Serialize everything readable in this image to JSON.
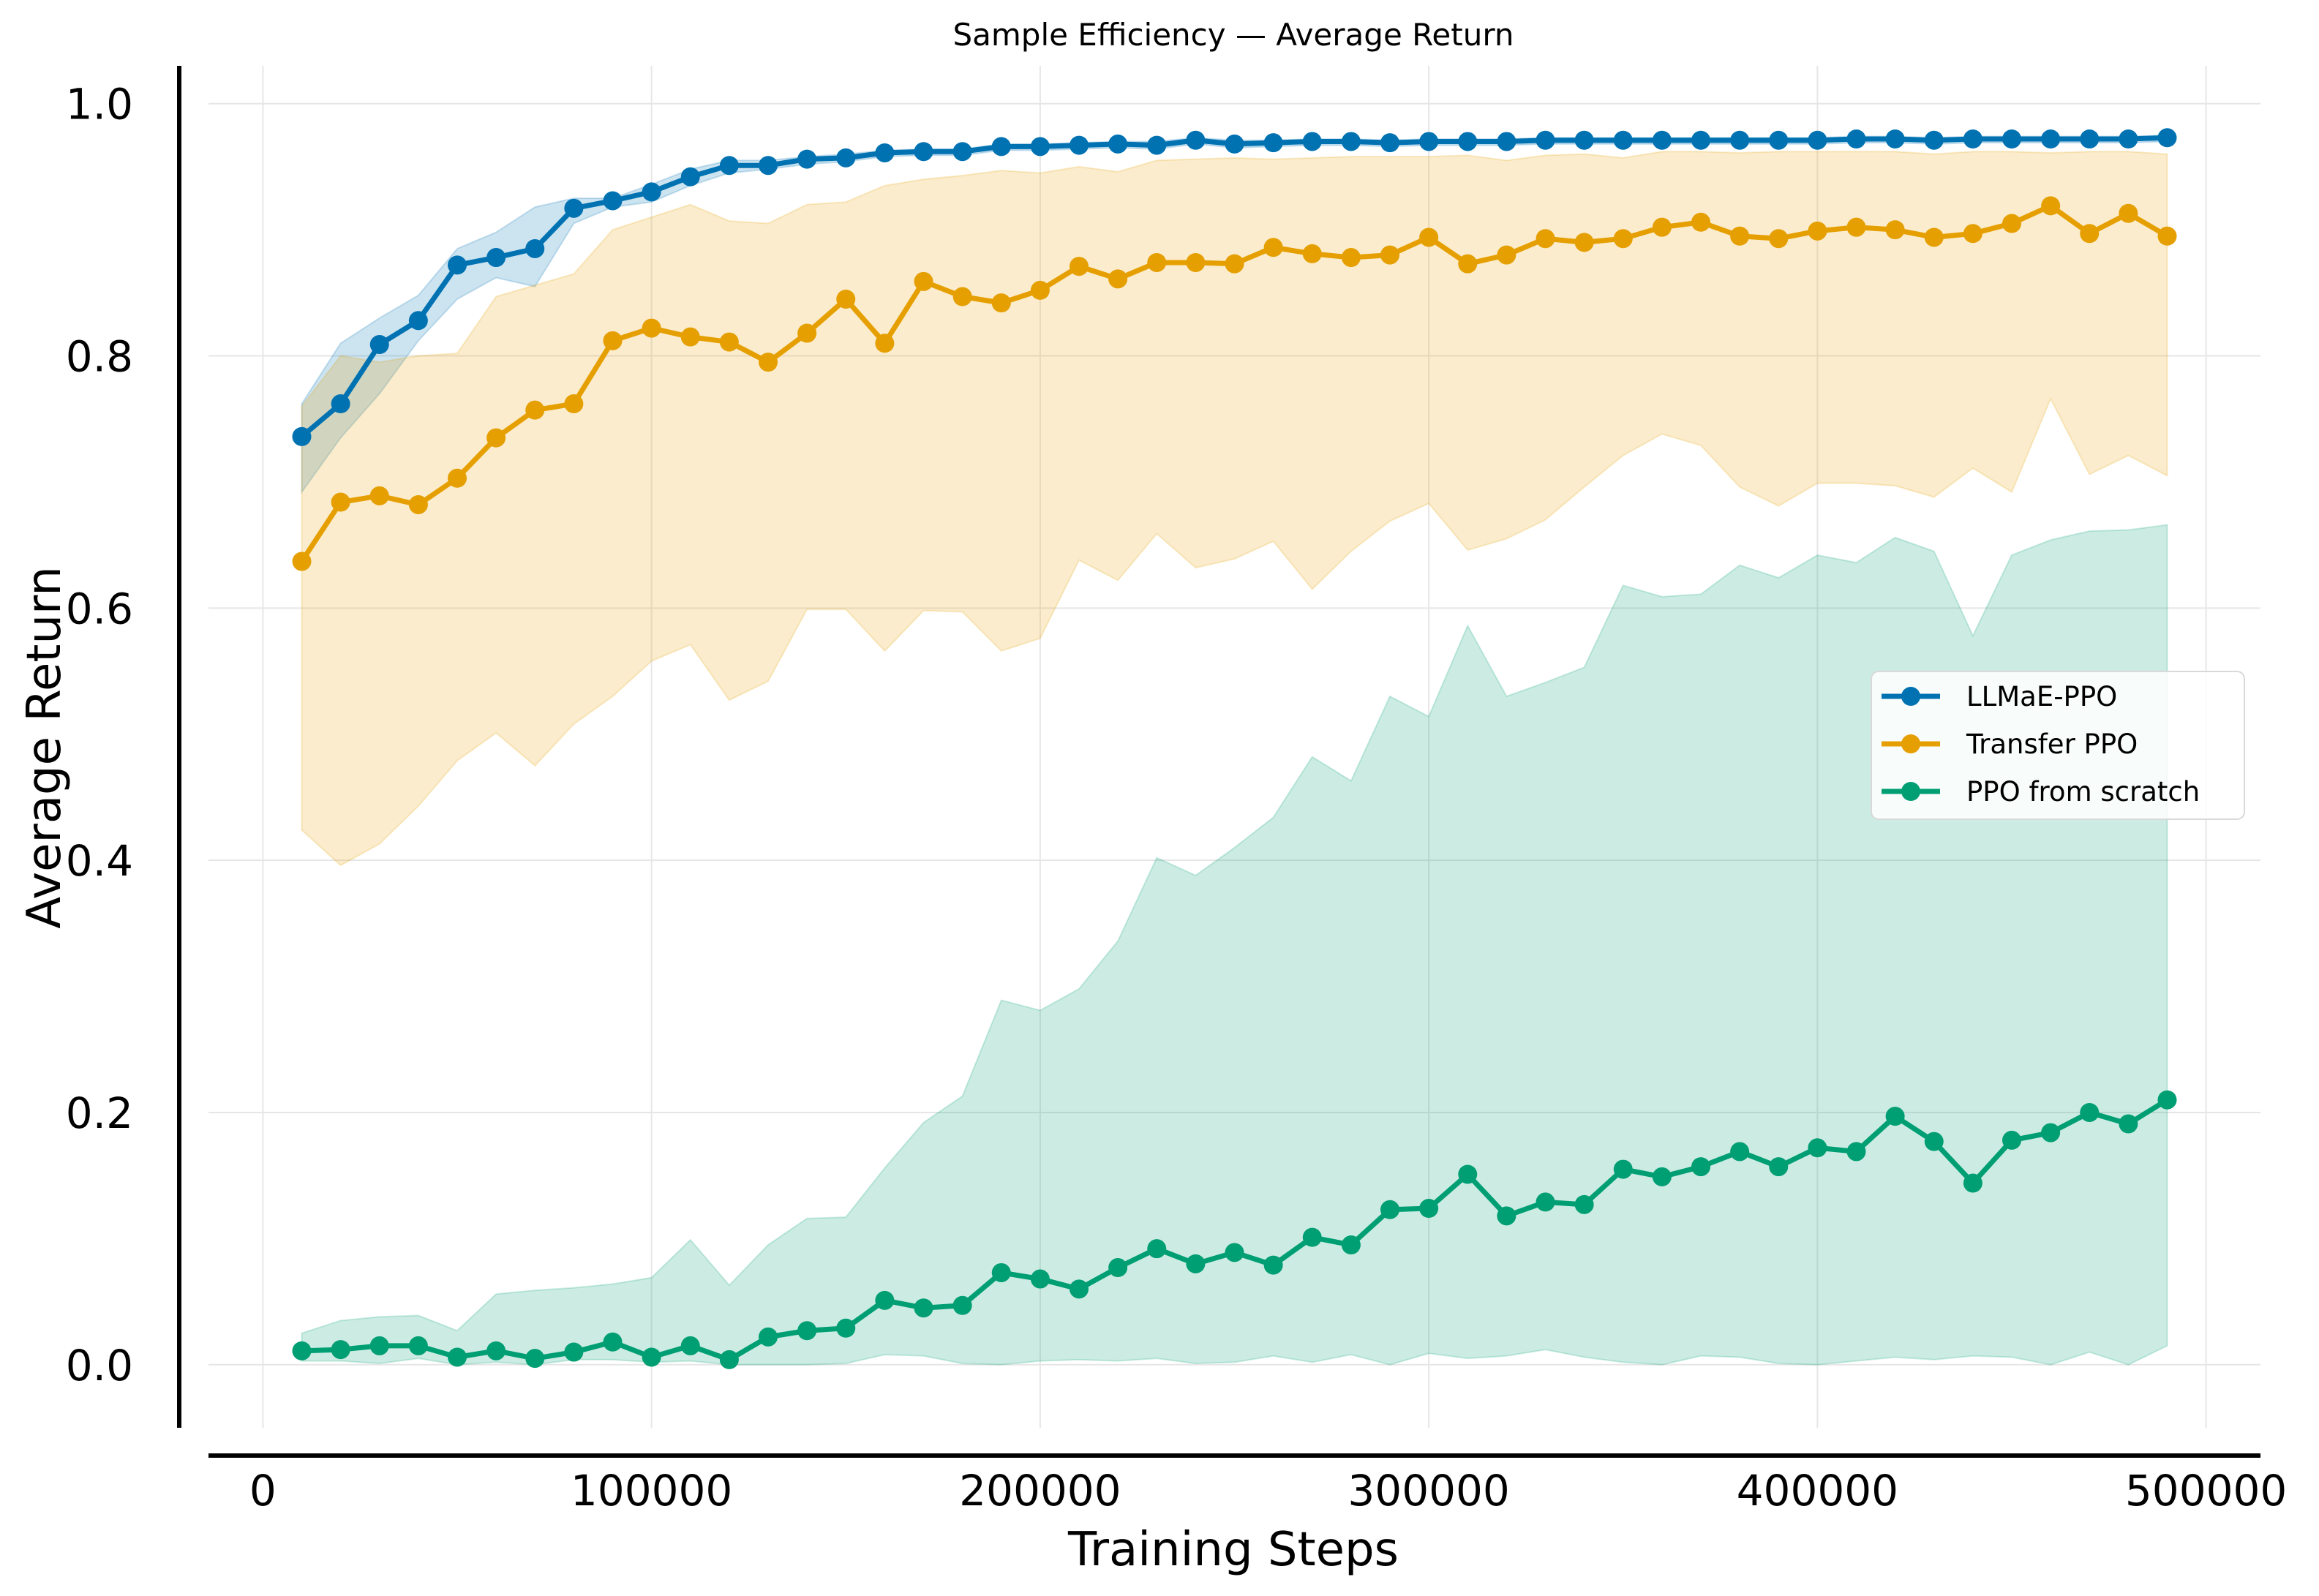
{
  "chart_data": {
    "type": "line",
    "title": "Sample Efficiency — Average Return",
    "xlabel": "Training Steps",
    "ylabel": "Average Return",
    "xlim": [
      -14000,
      514000
    ],
    "ylim": [
      -0.05,
      1.03
    ],
    "xticks": [
      0,
      100000,
      200000,
      300000,
      400000,
      500000
    ],
    "xtick_labels": [
      "0",
      "100000",
      "200000",
      "300000",
      "400000",
      "500000"
    ],
    "yticks": [
      0.0,
      0.2,
      0.4,
      0.6,
      0.8,
      1.0
    ],
    "ytick_labels": [
      "0.0",
      "0.2",
      "0.4",
      "0.6",
      "0.8",
      "1.0"
    ],
    "grid": true,
    "legend_position": "center-right",
    "x": [
      10000,
      20000,
      30000,
      40000,
      50000,
      60000,
      70000,
      80000,
      90000,
      100000,
      110000,
      120000,
      130000,
      140000,
      150000,
      160000,
      170000,
      180000,
      190000,
      200000,
      210000,
      220000,
      230000,
      240000,
      250000,
      260000,
      270000,
      280000,
      290000,
      300000,
      310000,
      320000,
      330000,
      340000,
      350000,
      360000,
      370000,
      380000,
      390000,
      400000,
      410000,
      420000,
      430000,
      440000,
      450000,
      460000,
      470000,
      480000,
      490000
    ],
    "series": [
      {
        "name": "LLMaE-PPO",
        "color": "#0072b2",
        "values": [
          0.736,
          0.762,
          0.809,
          0.828,
          0.872,
          0.878,
          0.885,
          0.917,
          0.923,
          0.93,
          0.942,
          0.951,
          0.951,
          0.956,
          0.957,
          0.961,
          0.962,
          0.962,
          0.966,
          0.966,
          0.967,
          0.968,
          0.967,
          0.971,
          0.968,
          0.969,
          0.97,
          0.97,
          0.969,
          0.97,
          0.97,
          0.97,
          0.971,
          0.971,
          0.971,
          0.971,
          0.971,
          0.971,
          0.971,
          0.971,
          0.972,
          0.972,
          0.971,
          0.972,
          0.972,
          0.972,
          0.972,
          0.972,
          0.973
        ],
        "band_upper": [
          0.762,
          0.81,
          0.83,
          0.848,
          0.885,
          0.898,
          0.918,
          0.925,
          0.925,
          0.936,
          0.948,
          0.955,
          0.955,
          0.958,
          0.96,
          0.963,
          0.964,
          0.964,
          0.968,
          0.968,
          0.969,
          0.97,
          0.97,
          0.973,
          0.971,
          0.971,
          0.972,
          0.972,
          0.971,
          0.972,
          0.972,
          0.972,
          0.973,
          0.973,
          0.973,
          0.973,
          0.973,
          0.973,
          0.973,
          0.973,
          0.974,
          0.974,
          0.973,
          0.974,
          0.974,
          0.974,
          0.974,
          0.974,
          0.975
        ],
        "band_lower": [
          0.692,
          0.735,
          0.77,
          0.812,
          0.845,
          0.862,
          0.855,
          0.905,
          0.918,
          0.922,
          0.935,
          0.945,
          0.948,
          0.952,
          0.954,
          0.958,
          0.959,
          0.959,
          0.963,
          0.963,
          0.964,
          0.965,
          0.964,
          0.968,
          0.965,
          0.966,
          0.967,
          0.967,
          0.966,
          0.967,
          0.967,
          0.967,
          0.968,
          0.968,
          0.968,
          0.968,
          0.968,
          0.968,
          0.968,
          0.968,
          0.969,
          0.969,
          0.968,
          0.969,
          0.969,
          0.969,
          0.969,
          0.969,
          0.97
        ]
      },
      {
        "name": "Transfer PPO",
        "color": "#e69f00",
        "values": [
          0.637,
          0.684,
          0.689,
          0.682,
          0.703,
          0.735,
          0.757,
          0.762,
          0.812,
          0.822,
          0.815,
          0.811,
          0.795,
          0.818,
          0.845,
          0.81,
          0.859,
          0.847,
          0.842,
          0.852,
          0.871,
          0.861,
          0.874,
          0.874,
          0.873,
          0.886,
          0.881,
          0.878,
          0.88,
          0.894,
          0.873,
          0.88,
          0.893,
          0.89,
          0.893,
          0.902,
          0.906,
          0.895,
          0.893,
          0.899,
          0.902,
          0.9,
          0.894,
          0.897,
          0.905,
          0.919,
          0.897,
          0.913,
          0.895
        ],
        "band_upper": [
          0.76,
          0.8,
          0.795,
          0.8,
          0.802,
          0.847,
          0.856,
          0.865,
          0.9,
          0.91,
          0.92,
          0.907,
          0.905,
          0.92,
          0.922,
          0.935,
          0.94,
          0.943,
          0.947,
          0.945,
          0.95,
          0.946,
          0.955,
          0.956,
          0.957,
          0.956,
          0.957,
          0.958,
          0.958,
          0.958,
          0.959,
          0.955,
          0.959,
          0.96,
          0.957,
          0.962,
          0.962,
          0.961,
          0.962,
          0.962,
          0.962,
          0.962,
          0.96,
          0.962,
          0.962,
          0.961,
          0.962,
          0.962,
          0.96
        ],
        "band_lower": [
          0.424,
          0.396,
          0.413,
          0.443,
          0.479,
          0.501,
          0.475,
          0.508,
          0.53,
          0.558,
          0.571,
          0.527,
          0.542,
          0.599,
          0.599,
          0.566,
          0.598,
          0.597,
          0.566,
          0.576,
          0.638,
          0.622,
          0.659,
          0.632,
          0.639,
          0.653,
          0.615,
          0.645,
          0.669,
          0.683,
          0.646,
          0.655,
          0.67,
          0.696,
          0.721,
          0.738,
          0.729,
          0.696,
          0.681,
          0.699,
          0.699,
          0.697,
          0.688,
          0.711,
          0.692,
          0.766,
          0.706,
          0.721,
          0.705
        ]
      },
      {
        "name": "PPO from scratch",
        "color": "#009e73",
        "values": [
          0.011,
          0.012,
          0.015,
          0.015,
          0.006,
          0.011,
          0.005,
          0.01,
          0.018,
          0.006,
          0.015,
          0.004,
          0.022,
          0.027,
          0.029,
          0.051,
          0.045,
          0.047,
          0.073,
          0.068,
          0.06,
          0.077,
          0.092,
          0.08,
          0.089,
          0.079,
          0.101,
          0.095,
          0.123,
          0.124,
          0.151,
          0.118,
          0.129,
          0.127,
          0.155,
          0.149,
          0.157,
          0.169,
          0.157,
          0.172,
          0.169,
          0.197,
          0.177,
          0.144,
          0.178,
          0.184,
          0.2,
          0.191,
          0.21
        ],
        "band_upper": [
          0.025,
          0.035,
          0.038,
          0.039,
          0.027,
          0.056,
          0.059,
          0.061,
          0.064,
          0.069,
          0.099,
          0.063,
          0.095,
          0.116,
          0.117,
          0.156,
          0.192,
          0.213,
          0.289,
          0.281,
          0.298,
          0.336,
          0.402,
          0.388,
          0.41,
          0.434,
          0.482,
          0.463,
          0.53,
          0.514,
          0.586,
          0.53,
          0.541,
          0.553,
          0.618,
          0.609,
          0.611,
          0.634,
          0.624,
          0.642,
          0.636,
          0.656,
          0.645,
          0.578,
          0.642,
          0.654,
          0.661,
          0.662,
          0.666
        ],
        "band_lower": [
          0.003,
          0.003,
          0.001,
          0.005,
          0.0,
          0.002,
          0.0,
          0.004,
          0.004,
          0.002,
          0.003,
          0.0,
          0.0,
          0.0,
          0.001,
          0.008,
          0.007,
          0.001,
          0.0,
          0.003,
          0.004,
          0.003,
          0.005,
          0.001,
          0.002,
          0.007,
          0.002,
          0.008,
          0.0,
          0.009,
          0.005,
          0.007,
          0.012,
          0.006,
          0.002,
          0.0,
          0.007,
          0.006,
          0.001,
          0.0,
          0.003,
          0.006,
          0.004,
          0.007,
          0.006,
          0.0,
          0.01,
          0.0,
          0.015
        ]
      }
    ]
  }
}
